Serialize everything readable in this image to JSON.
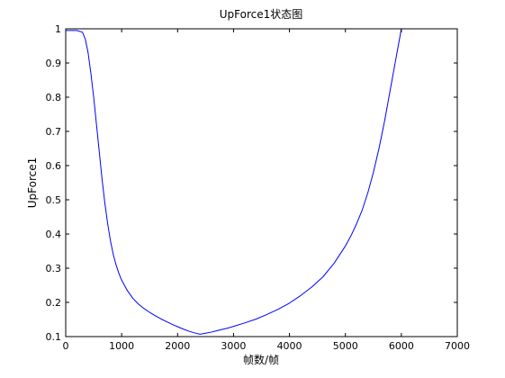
{
  "chart_data": {
    "type": "line",
    "title": "UpForce1状态图",
    "xlabel": "帧数/帧",
    "ylabel": "UpForce1",
    "xlim": [
      0,
      7000
    ],
    "ylim": [
      0.1,
      1
    ],
    "xticks": [
      0,
      1000,
      2000,
      3000,
      4000,
      5000,
      6000,
      7000
    ],
    "yticks": [
      0.1,
      0.2,
      0.3,
      0.4,
      0.5,
      0.6,
      0.7,
      0.8,
      0.9,
      1
    ],
    "xtick_labels": [
      "0",
      "1000",
      "2000",
      "3000",
      "4000",
      "5000",
      "6000",
      "7000"
    ],
    "ytick_labels": [
      "0.1",
      "0.2",
      "0.3",
      "0.4",
      "0.5",
      "0.6",
      "0.7",
      "0.8",
      "0.9",
      "1"
    ],
    "grid": false,
    "line_color": "#0000ff",
    "series": [
      {
        "x": [
          0,
          100,
          200,
          300,
          350,
          400,
          450,
          500,
          550,
          600,
          650,
          700,
          750,
          800,
          850,
          900,
          950,
          1000,
          1100,
          1200,
          1300,
          1400,
          1500,
          1600,
          1700,
          1800,
          1900,
          2000,
          2100,
          2200,
          2300,
          2400,
          2500,
          2600,
          2700,
          2800,
          2900,
          3000,
          3200,
          3400,
          3600,
          3800,
          4000,
          4200,
          4400,
          4600,
          4800,
          5000,
          5100,
          5200,
          5300,
          5400,
          5500,
          5600,
          5700,
          5800,
          5900,
          5950,
          6000
        ],
        "y": [
          0.995,
          0.995,
          0.995,
          0.99,
          0.97,
          0.93,
          0.87,
          0.8,
          0.72,
          0.64,
          0.56,
          0.49,
          0.43,
          0.38,
          0.34,
          0.31,
          0.285,
          0.265,
          0.235,
          0.212,
          0.195,
          0.182,
          0.171,
          0.161,
          0.152,
          0.144,
          0.136,
          0.129,
          0.122,
          0.116,
          0.111,
          0.107,
          0.11,
          0.113,
          0.117,
          0.121,
          0.125,
          0.13,
          0.14,
          0.151,
          0.165,
          0.18,
          0.198,
          0.22,
          0.245,
          0.275,
          0.315,
          0.365,
          0.395,
          0.43,
          0.47,
          0.52,
          0.58,
          0.65,
          0.73,
          0.82,
          0.91,
          0.955,
          1.0
        ]
      }
    ]
  }
}
